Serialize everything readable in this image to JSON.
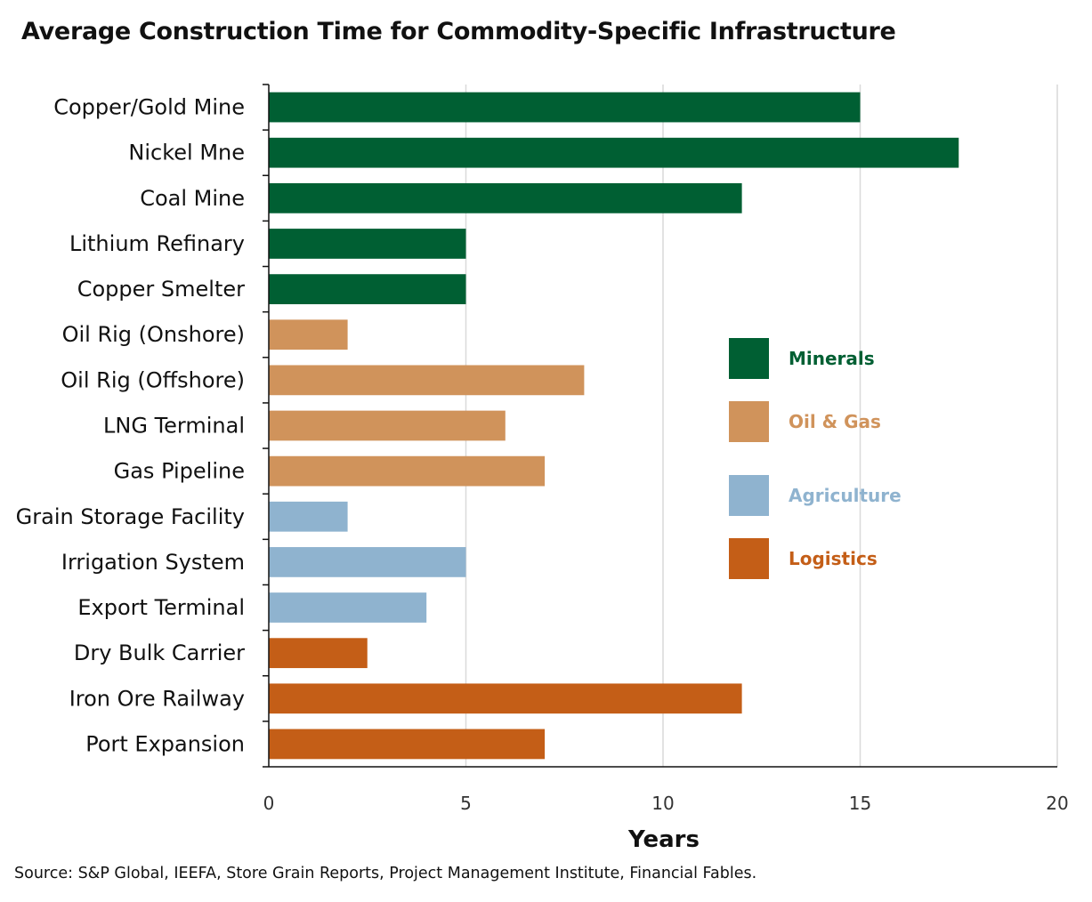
{
  "chart_data": {
    "type": "bar",
    "orientation": "horizontal",
    "title": "Average Construction Time for Commodity-Specific Infrastructure",
    "xlabel": "Years",
    "ylabel": "",
    "xlim": [
      0,
      20
    ],
    "xticks": [
      0,
      5,
      10,
      15,
      20
    ],
    "grid": "vertical",
    "legend_position": "right",
    "categories": [
      "Copper/Gold Mine",
      "Nickel Mne",
      "Coal Mine",
      "Lithium Refinary",
      "Copper Smelter",
      "Oil Rig (Onshore)",
      "Oil Rig (Offshore)",
      "LNG Terminal",
      "Gas Pipeline",
      "Grain Storage Facility",
      "Irrigation System",
      "Export Terminal",
      "Dry Bulk Carrier",
      "Iron Ore Railway",
      "Port Expansion"
    ],
    "values": [
      15,
      17.5,
      12,
      5,
      5,
      2,
      8,
      6,
      7,
      2,
      5,
      4,
      2.5,
      12,
      7
    ],
    "groups": [
      "Minerals",
      "Minerals",
      "Minerals",
      "Minerals",
      "Minerals",
      "Oil & Gas",
      "Oil & Gas",
      "Oil & Gas",
      "Oil & Gas",
      "Agriculture",
      "Agriculture",
      "Agriculture",
      "Logistics",
      "Logistics",
      "Logistics"
    ],
    "legend": [
      {
        "name": "Minerals",
        "color": "#005f33"
      },
      {
        "name": "Oil & Gas",
        "color": "#d0935b"
      },
      {
        "name": "Agriculture",
        "color": "#8fb3cf"
      },
      {
        "name": "Logistics",
        "color": "#c45e17"
      }
    ],
    "source": "Source: S&P Global, IEEFA, Store Grain Reports, Project Management Institute, Financial Fables."
  }
}
